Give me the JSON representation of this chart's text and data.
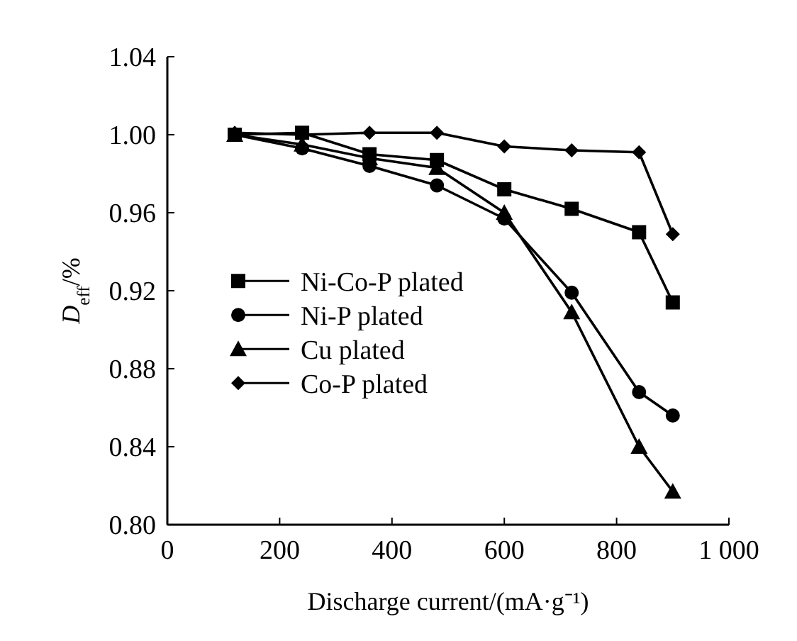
{
  "chart_data": {
    "type": "line",
    "xlabel": "Discharge current/(mA·g⁻¹)",
    "ylabel": "D$_{eff}$/%",
    "x": [
      120,
      240,
      360,
      480,
      600,
      720,
      840,
      900
    ],
    "series": [
      {
        "name": "Ni-Co-P plated",
        "color": "#000000",
        "marker": "square",
        "values": [
          1.0,
          1.001,
          0.99,
          0.987,
          0.972,
          0.962,
          0.95,
          0.914
        ]
      },
      {
        "name": "Ni-P plated",
        "color": "#000000",
        "marker": "circle",
        "values": [
          1.0,
          0.993,
          0.984,
          0.974,
          0.957,
          0.919,
          0.868,
          0.856
        ]
      },
      {
        "name": "Cu plated",
        "color": "#000000",
        "marker": "triangle",
        "values": [
          1.0,
          0.995,
          0.988,
          0.983,
          0.96,
          0.909,
          0.84,
          0.817
        ]
      },
      {
        "name": "Co-P plated",
        "color": "#000000",
        "marker": "diamond",
        "values": [
          1.001,
          1.0,
          1.001,
          1.001,
          0.994,
          0.992,
          0.991,
          0.949
        ]
      }
    ],
    "xlim": [
      0,
      1000
    ],
    "xticks": [
      0,
      200,
      400,
      600,
      800,
      {
        "value": 1000,
        "label": "1 000"
      }
    ],
    "ylim": [
      0.8,
      1.04
    ],
    "yticks": [
      {
        "value": 0.8,
        "label": "0.80"
      },
      {
        "value": 0.84,
        "label": "0.84"
      },
      {
        "value": 0.88,
        "label": "0.88"
      },
      {
        "value": 0.92,
        "label": "0.92"
      },
      {
        "value": 0.96,
        "label": "0.96"
      },
      {
        "value": 1.0,
        "label": "1.00"
      },
      {
        "value": 1.04,
        "label": "1.04"
      }
    ],
    "legend": "left",
    "grid": false,
    "line_style": "solid"
  }
}
